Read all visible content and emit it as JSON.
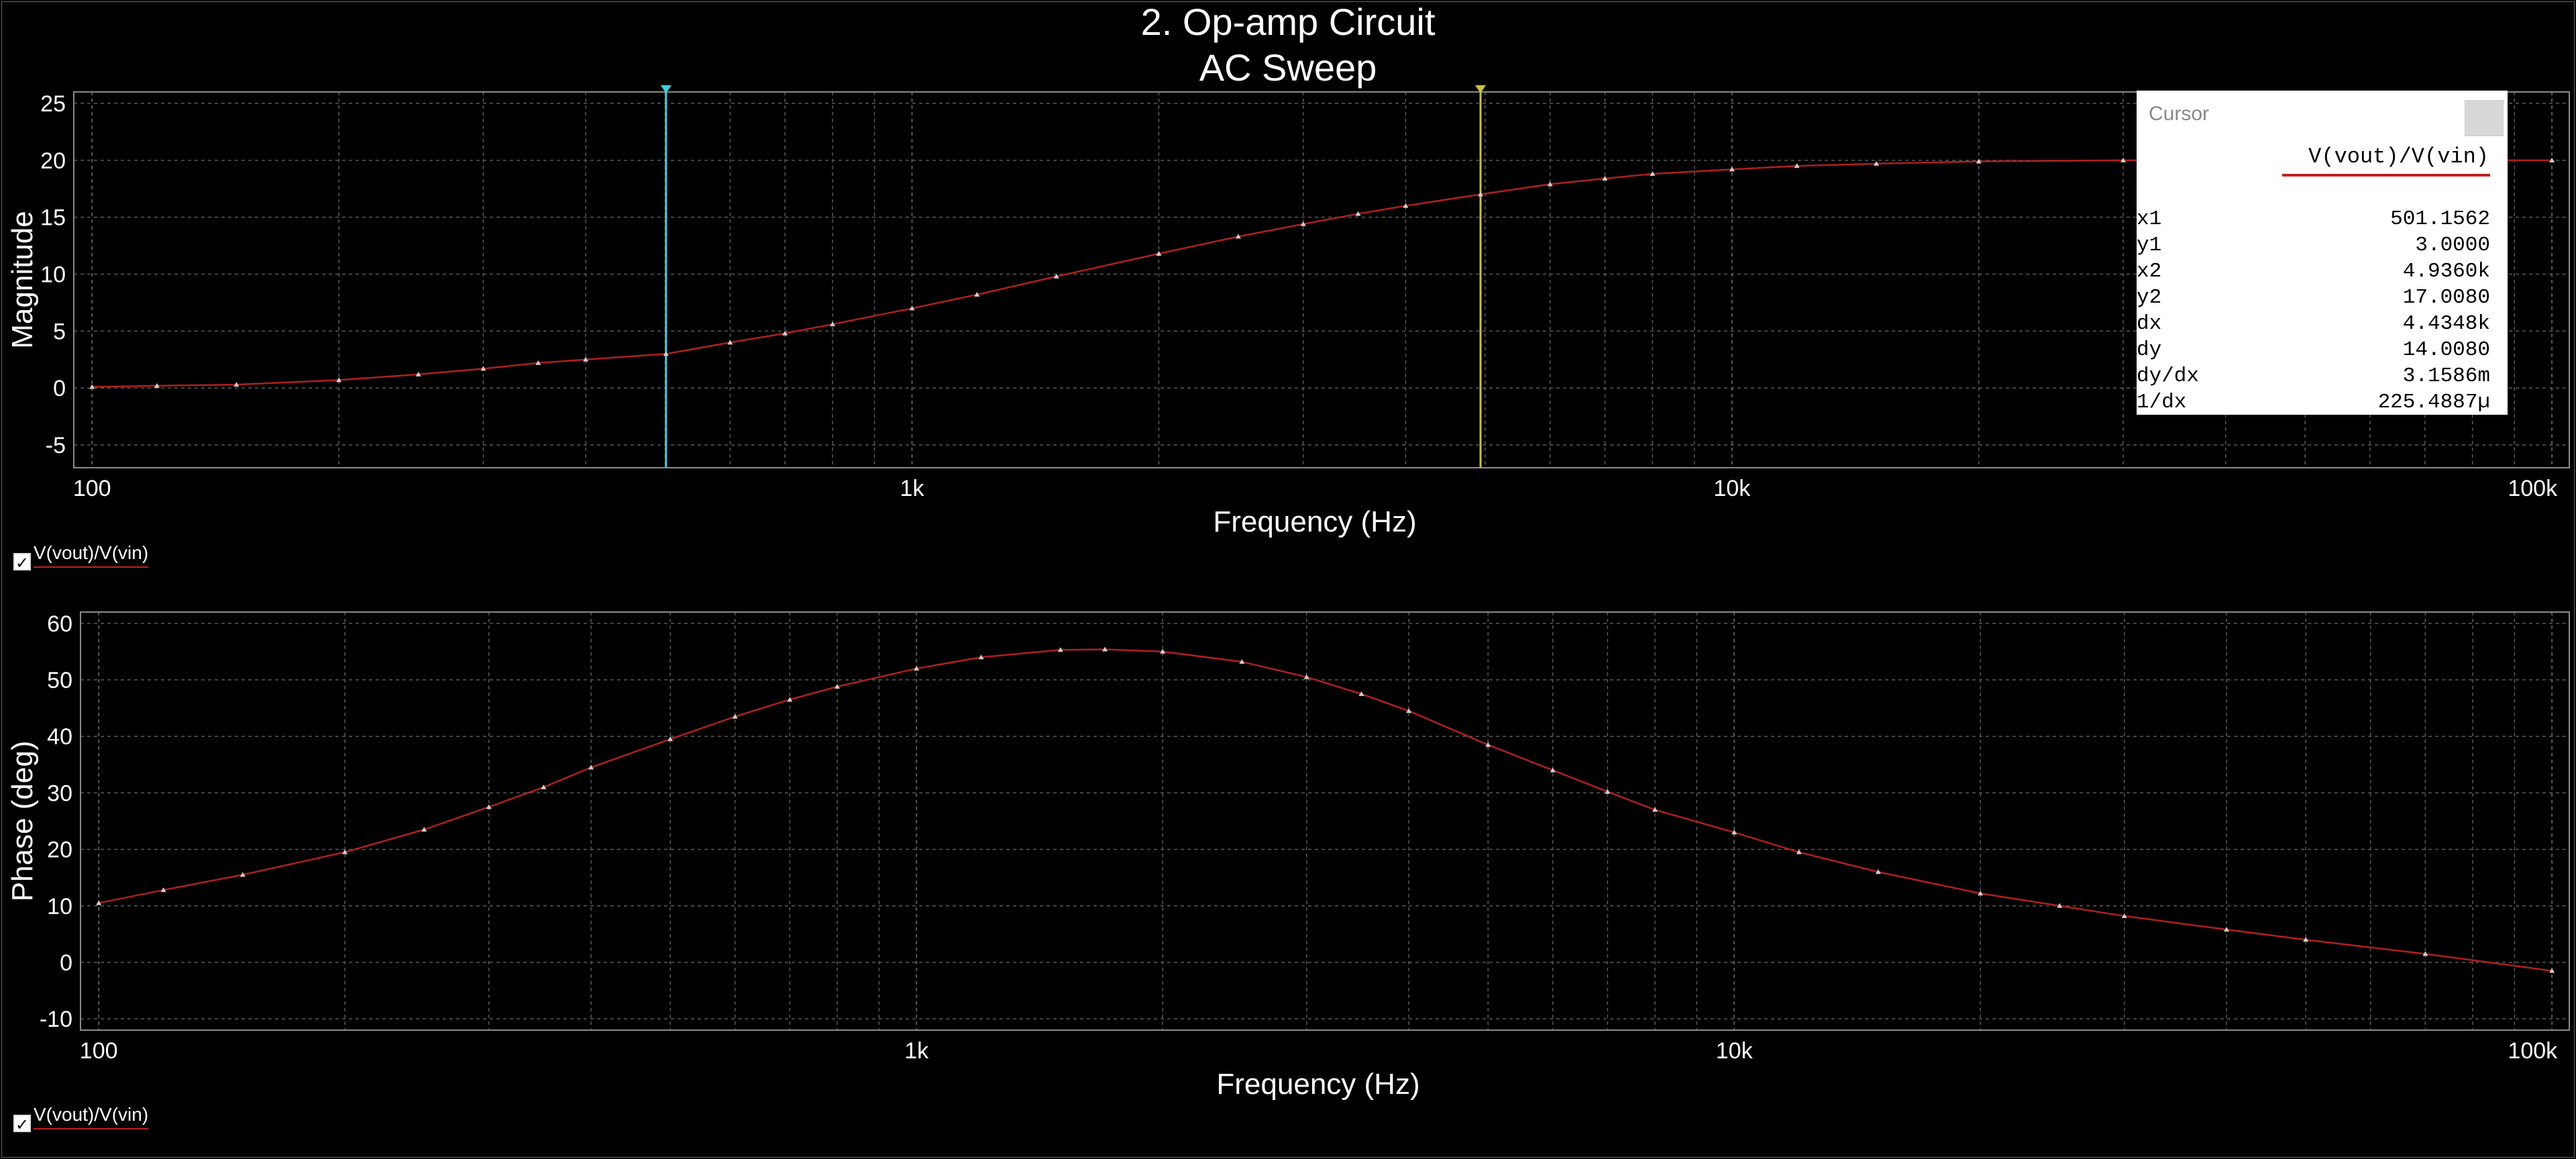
{
  "title_line1": "2. Op-amp Circuit",
  "title_line2": "AC Sweep",
  "colors": {
    "trace": "#b02020",
    "cursor1": "#3ad0e0",
    "cursor2": "#c8c040",
    "grid": "#5a5a5a",
    "background": "#000000"
  },
  "chart_data": [
    {
      "type": "line",
      "xscale": "log",
      "xlim": [
        95,
        105000
      ],
      "ylim": [
        -7,
        26
      ],
      "xlabel": "Frequency (Hz)",
      "ylabel": "Magnitude",
      "xticks": [
        {
          "v": 100,
          "label": "100"
        },
        {
          "v": 1000,
          "label": "1k"
        },
        {
          "v": 10000,
          "label": "10k"
        },
        {
          "v": 100000,
          "label": "100k"
        }
      ],
      "yticks": [
        25,
        20,
        15,
        10,
        5,
        0,
        -5
      ],
      "series": [
        {
          "name": "V(vout)/V(vin)",
          "x": [
            100,
            120,
            150,
            200,
            250,
            300,
            350,
            400,
            501.1562,
            600,
            700,
            800,
            1000,
            1200,
            1500,
            2000,
            2500,
            3000,
            3500,
            4000,
            4936,
            6000,
            7000,
            8000,
            10000,
            12000,
            15000,
            20000,
            30000,
            50000,
            70000,
            100000
          ],
          "y": [
            0.1,
            0.2,
            0.3,
            0.7,
            1.2,
            1.7,
            2.2,
            2.5,
            3.0,
            4.0,
            4.8,
            5.6,
            7.0,
            8.2,
            9.8,
            11.8,
            13.3,
            14.4,
            15.3,
            16.0,
            17.008,
            17.9,
            18.4,
            18.8,
            19.2,
            19.5,
            19.7,
            19.9,
            20.0,
            20.0,
            20.0,
            20.0
          ]
        }
      ],
      "cursors": [
        501.1562,
        4936.0
      ],
      "legend": "V(vout)/V(vin)"
    },
    {
      "type": "line",
      "xscale": "log",
      "xlim": [
        95,
        105000
      ],
      "ylim": [
        -12,
        62
      ],
      "xlabel": "Frequency (Hz)",
      "ylabel": "Phase (deg)",
      "xticks": [
        {
          "v": 100,
          "label": "100"
        },
        {
          "v": 1000,
          "label": "1k"
        },
        {
          "v": 10000,
          "label": "10k"
        },
        {
          "v": 100000,
          "label": "100k"
        }
      ],
      "yticks": [
        60,
        50,
        40,
        30,
        20,
        10,
        0,
        -10
      ],
      "series": [
        {
          "name": "V(vout)/V(vin)",
          "x": [
            100,
            120,
            150,
            200,
            250,
            300,
            350,
            400,
            500,
            600,
            700,
            800,
            1000,
            1200,
            1500,
            1700,
            2000,
            2500,
            3000,
            3500,
            4000,
            5000,
            6000,
            7000,
            8000,
            10000,
            12000,
            15000,
            20000,
            25000,
            30000,
            40000,
            50000,
            70000,
            100000
          ],
          "y": [
            10.5,
            12.8,
            15.5,
            19.5,
            23.5,
            27.5,
            31,
            34.5,
            39.5,
            43.5,
            46.5,
            48.8,
            52,
            54,
            55.3,
            55.4,
            55,
            53.2,
            50.5,
            47.5,
            44.5,
            38.5,
            34,
            30.2,
            27,
            23,
            19.5,
            16,
            12.2,
            10,
            8.2,
            5.8,
            4,
            1.5,
            -1.5
          ]
        }
      ],
      "legend": "V(vout)/V(vin)"
    }
  ],
  "cursor_panel": {
    "header": "Cursor",
    "signal": "V(vout)/V(vin)",
    "rows": [
      {
        "label": "x1",
        "value": "501.1562"
      },
      {
        "label": "y1",
        "value": "3.0000"
      },
      {
        "label": "x2",
        "value": "4.9360k"
      },
      {
        "label": "y2",
        "value": "17.0080"
      },
      {
        "label": "dx",
        "value": "4.4348k"
      },
      {
        "label": "dy",
        "value": "14.0080"
      },
      {
        "label": "dy/dx",
        "value": "3.1586m"
      },
      {
        "label": "1/dx",
        "value": "225.4887µ"
      }
    ]
  }
}
